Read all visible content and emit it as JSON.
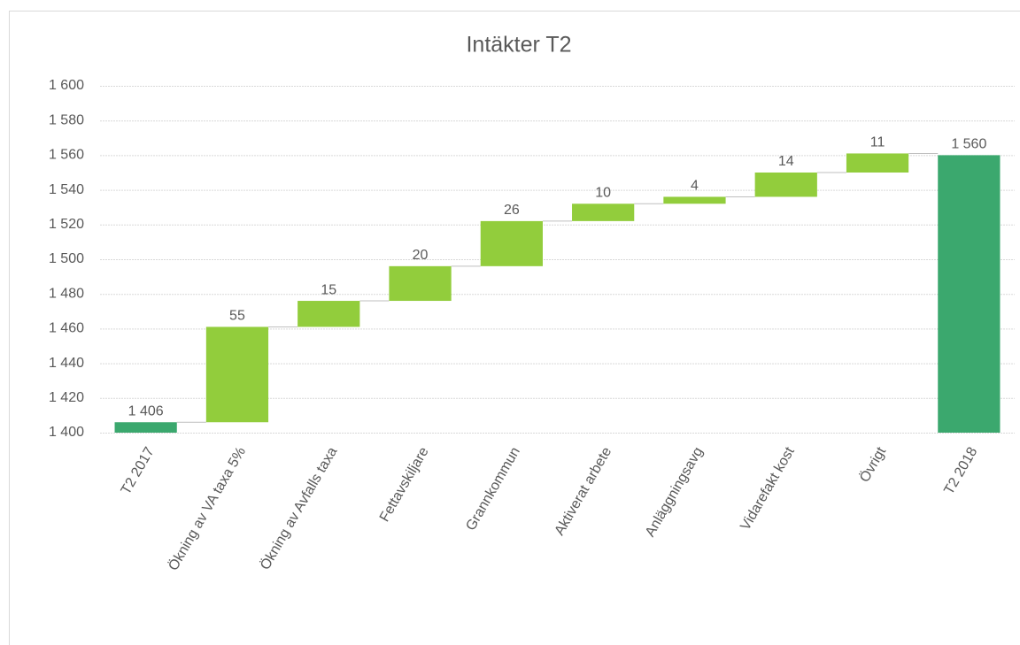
{
  "chart_data": {
    "type": "waterfall",
    "title": "Intäkter T2",
    "categories": [
      "T2 2017",
      "Ökning av VA taxa 5%",
      "Ökning av Avfalls taxa",
      "Fettavskiljare",
      "Grannkommun",
      "Aktiverat arbete",
      "Anläggningsavg",
      "Vidarefakt kost",
      "Övrigt",
      "T2 2018"
    ],
    "values": [
      1406,
      55,
      15,
      20,
      26,
      10,
      4,
      14,
      11,
      1560
    ],
    "value_labels": [
      "1 406",
      "55",
      "15",
      "20",
      "26",
      "10",
      "4",
      "14",
      "11",
      "1 560"
    ],
    "measure": [
      "total",
      "relative",
      "relative",
      "relative",
      "relative",
      "relative",
      "relative",
      "relative",
      "relative",
      "total"
    ],
    "total_color": "#3ba86e",
    "increase_color": "#92cd3c",
    "ylim": [
      1400,
      1600
    ],
    "yticks": [
      {
        "value": 1400,
        "label": "1 400"
      },
      {
        "value": 1420,
        "label": "1 420"
      },
      {
        "value": 1440,
        "label": "1 440"
      },
      {
        "value": 1460,
        "label": "1 460"
      },
      {
        "value": 1480,
        "label": "1 480"
      },
      {
        "value": 1500,
        "label": "1 500"
      },
      {
        "value": 1520,
        "label": "1 520"
      },
      {
        "value": 1540,
        "label": "1 540"
      },
      {
        "value": 1560,
        "label": "1 560"
      },
      {
        "value": 1580,
        "label": "1 580"
      },
      {
        "value": 1600,
        "label": "1 600"
      }
    ],
    "grid": true
  }
}
